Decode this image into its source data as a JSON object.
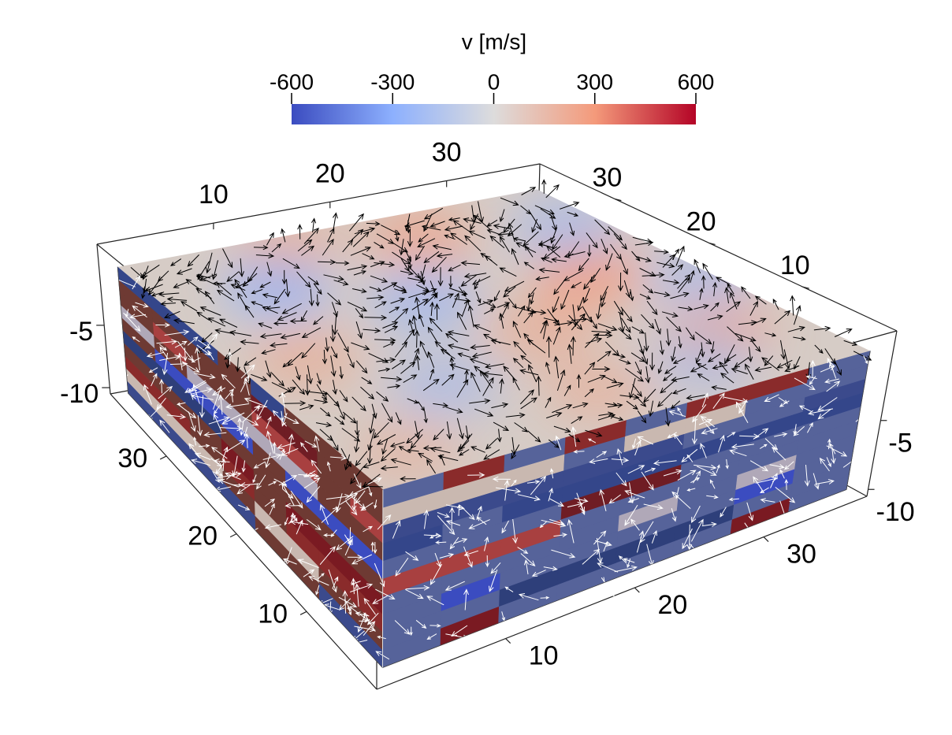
{
  "chart_data": {
    "type": "field3d",
    "colorbar": {
      "title": "v [m/s]",
      "lim": [
        -600,
        600
      ],
      "ticks": [
        -600,
        -300,
        0,
        300,
        600
      ],
      "colormap": [
        "#3b4cc0",
        "#8db0fe",
        "#dddcdc",
        "#f49a7b",
        "#b40426"
      ]
    },
    "xaxis": {
      "lim": [
        0,
        38
      ],
      "ticks": [
        10,
        20,
        30
      ]
    },
    "yaxis": {
      "lim": [
        0,
        38
      ],
      "ticks": [
        10,
        20,
        30
      ]
    },
    "zaxis": {
      "lim": [
        -10.5,
        1.5
      ],
      "ticks": [
        -5,
        -10
      ]
    }
  }
}
